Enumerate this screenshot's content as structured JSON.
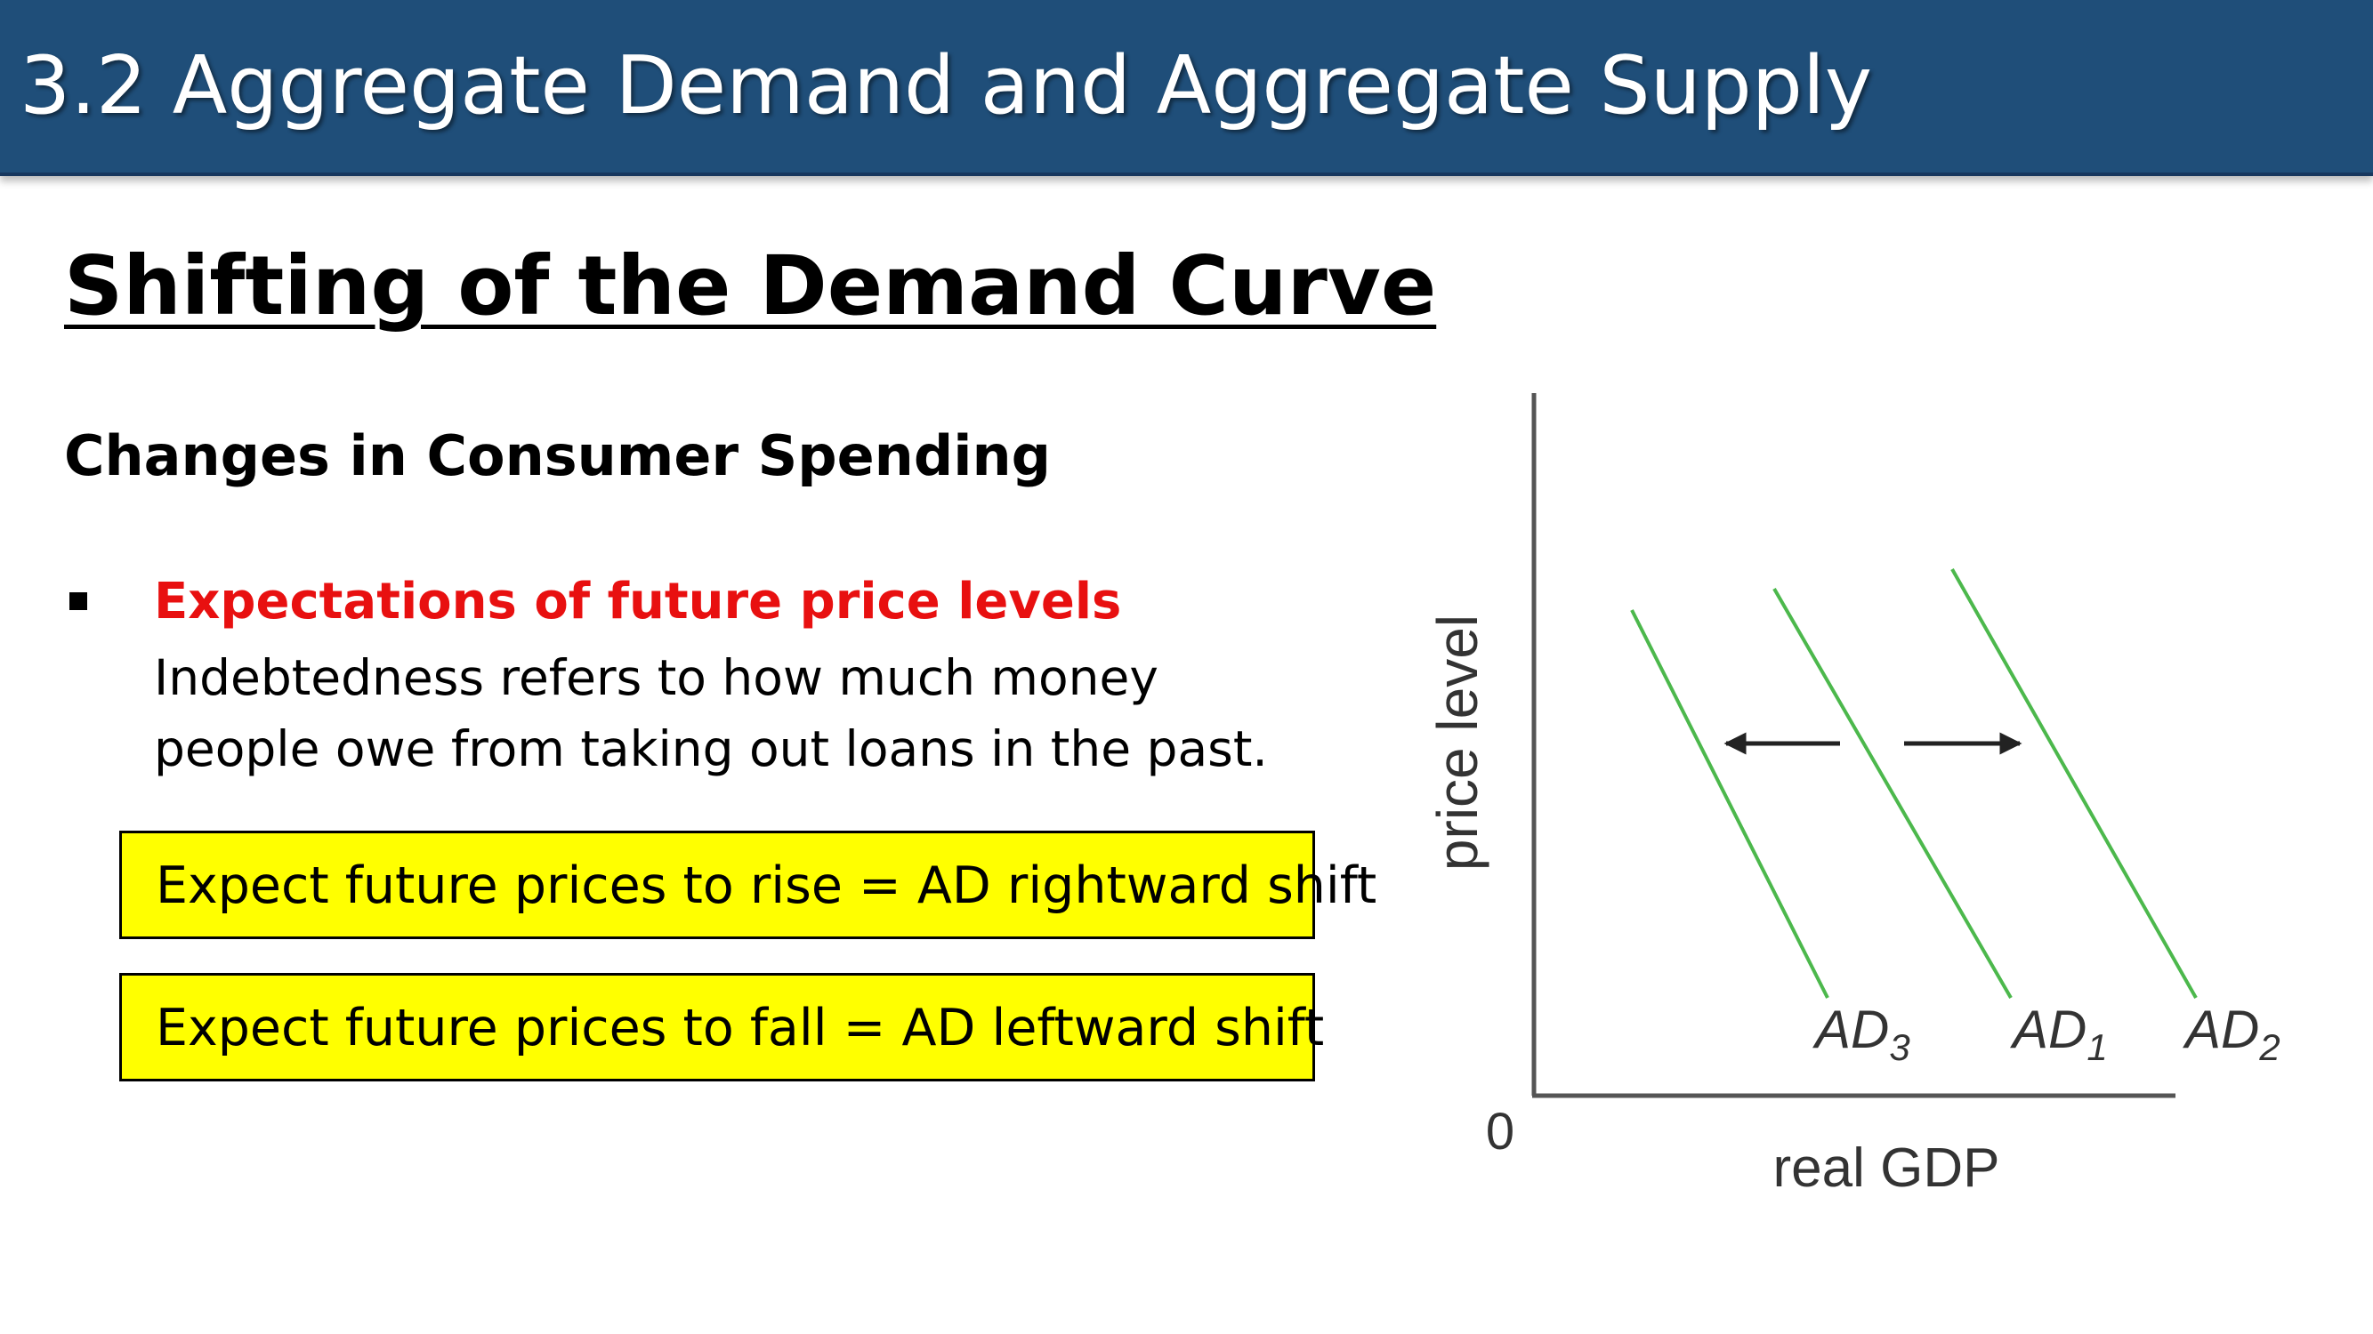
{
  "slide": {
    "title": "3.2 Aggregate Demand and Aggregate Supply",
    "heading": "Shifting of the Demand Curve",
    "subheading": "Changes in Consumer Spending",
    "bullet": {
      "title": "Expectations of future price levels",
      "body_lines": [
        "Indebtedness refers to how much money",
        "people owe from taking out loans in the past."
      ]
    },
    "callouts": [
      "Expect future prices to rise = AD rightward shift",
      "Expect future prices to fall = AD leftward shift"
    ]
  },
  "colors": {
    "banner": "#1f4e79",
    "accent_red": "#e81010",
    "callout_fill": "#ffff00",
    "curve_green": "#4cb84c"
  },
  "chart": {
    "y_label": "price level",
    "x_label": "real GDP",
    "origin_label": "0",
    "curves": [
      {
        "base": "AD",
        "sub": "3"
      },
      {
        "base": "AD",
        "sub": "1"
      },
      {
        "base": "AD",
        "sub": "2"
      }
    ],
    "arrows": [
      "left",
      "right"
    ]
  }
}
